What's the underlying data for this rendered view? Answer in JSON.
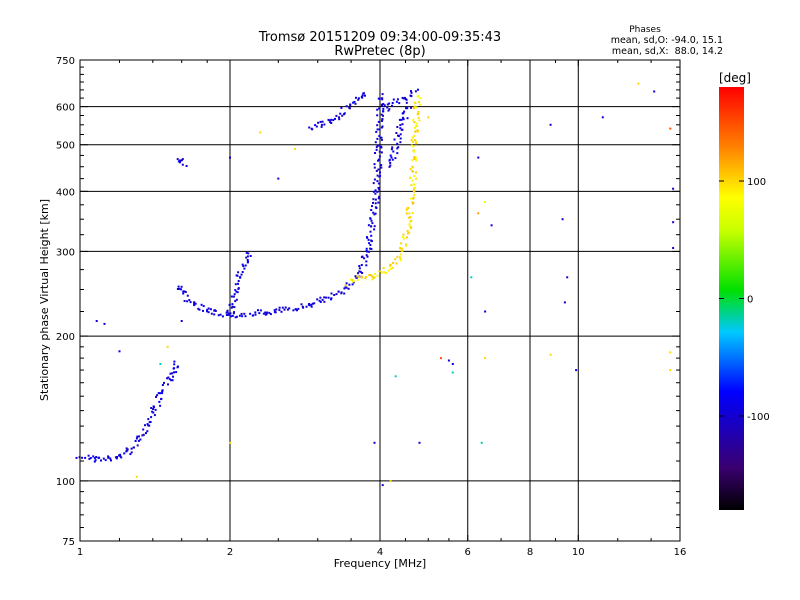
{
  "chart_data": {
    "type": "scatter",
    "title": "Tromsø 20151209 09:34:00-09:35:43",
    "subtitle": "RwPretec (8p)",
    "xlabel": "Frequency [MHz]",
    "ylabel": "Stationary phase Virtual Height [km]",
    "x_scale": "log",
    "y_scale": "log",
    "xlim": [
      1,
      16
    ],
    "ylim": [
      75,
      750
    ],
    "x_ticks": [
      1,
      2,
      4,
      6,
      8,
      10,
      16
    ],
    "x_tick_labels": [
      "1",
      "2",
      "4",
      "6",
      "8",
      "10",
      "16"
    ],
    "y_ticks": [
      75,
      100,
      200,
      300,
      400,
      500,
      600,
      750
    ],
    "y_tick_labels": [
      "75",
      "100",
      "200",
      "300",
      "400",
      "500",
      "600",
      "750"
    ],
    "grid": true,
    "phases_box": {
      "title": "Phases",
      "lines": [
        "mean, sd,O: -94.0, 15.1",
        "mean, sd,X:  88.0, 14.2"
      ]
    },
    "colorbar": {
      "label": "[deg]",
      "range": [
        -180,
        180
      ],
      "ticks": [
        100,
        0,
        -100
      ],
      "tick_labels": [
        "100",
        "0",
        "-100"
      ]
    },
    "traces": [
      {
        "phase": -95,
        "points": [
          [
            1.0,
            113
          ],
          [
            1.03,
            112
          ],
          [
            1.06,
            111
          ],
          [
            1.1,
            111
          ],
          [
            1.14,
            111
          ],
          [
            1.18,
            112
          ],
          [
            1.22,
            113
          ],
          [
            1.26,
            116
          ],
          [
            1.3,
            120
          ],
          [
            1.34,
            127
          ],
          [
            1.38,
            134
          ],
          [
            1.42,
            143
          ],
          [
            1.46,
            152
          ],
          [
            1.5,
            160
          ],
          [
            1.54,
            170
          ],
          [
            1.57,
            178
          ]
        ]
      },
      {
        "phase": -95,
        "points": [
          [
            1.57,
            255
          ],
          [
            1.6,
            245
          ],
          [
            1.65,
            236
          ],
          [
            1.72,
            230
          ],
          [
            1.8,
            226
          ],
          [
            1.9,
            223
          ],
          [
            2.0,
            222
          ],
          [
            2.1,
            222
          ],
          [
            2.25,
            223
          ],
          [
            2.4,
            224
          ],
          [
            2.6,
            227
          ],
          [
            2.8,
            231
          ],
          [
            3.0,
            236
          ],
          [
            3.2,
            242
          ],
          [
            3.4,
            250
          ],
          [
            3.55,
            262
          ],
          [
            3.7,
            280
          ],
          [
            3.8,
            310
          ],
          [
            3.9,
            360
          ],
          [
            3.95,
            420
          ],
          [
            3.98,
            500
          ],
          [
            4.0,
            580
          ],
          [
            4.02,
            640
          ]
        ]
      },
      {
        "phase": -95,
        "points": [
          [
            2.0,
            222
          ],
          [
            2.05,
            245
          ],
          [
            2.1,
            270
          ],
          [
            2.2,
            300
          ]
        ]
      },
      {
        "phase": -95,
        "points": [
          [
            2.9,
            540
          ],
          [
            3.1,
            555
          ],
          [
            3.3,
            575
          ],
          [
            3.5,
            605
          ],
          [
            3.65,
            630
          ],
          [
            3.75,
            645
          ]
        ]
      },
      {
        "phase": -95,
        "points": [
          [
            4.05,
            590
          ],
          [
            4.15,
            600
          ],
          [
            4.3,
            612
          ],
          [
            4.45,
            622
          ],
          [
            4.6,
            635
          ],
          [
            4.75,
            645
          ]
        ]
      },
      {
        "phase": -95,
        "points": [
          [
            4.2,
            450
          ],
          [
            4.3,
            500
          ],
          [
            4.4,
            540
          ],
          [
            4.5,
            580
          ],
          [
            4.6,
            610
          ]
        ]
      },
      {
        "phase": -95,
        "points": [
          [
            1.55,
            470
          ],
          [
            1.6,
            460
          ],
          [
            1.65,
            455
          ]
        ]
      },
      {
        "phase": 95,
        "points": [
          [
            3.45,
            258
          ],
          [
            3.6,
            262
          ],
          [
            3.8,
            265
          ],
          [
            4.0,
            270
          ],
          [
            4.2,
            278
          ],
          [
            4.35,
            290
          ],
          [
            4.45,
            310
          ],
          [
            4.55,
            340
          ],
          [
            4.62,
            380
          ],
          [
            4.66,
            430
          ],
          [
            4.68,
            480
          ],
          [
            4.7,
            520
          ],
          [
            4.72,
            560
          ],
          [
            4.75,
            600
          ],
          [
            4.78,
            640
          ]
        ]
      }
    ],
    "scatter_points": [
      {
        "x": 1.08,
        "y": 215,
        "phase": -95
      },
      {
        "x": 1.12,
        "y": 212,
        "phase": -95
      },
      {
        "x": 1.2,
        "y": 186,
        "phase": -95
      },
      {
        "x": 1.6,
        "y": 215,
        "phase": -95
      },
      {
        "x": 2.0,
        "y": 470,
        "phase": -95
      },
      {
        "x": 2.5,
        "y": 425,
        "phase": -95
      },
      {
        "x": 3.9,
        "y": 120,
        "phase": -95
      },
      {
        "x": 4.05,
        "y": 98,
        "phase": -95
      },
      {
        "x": 4.8,
        "y": 120,
        "phase": -95
      },
      {
        "x": 5.5,
        "y": 178,
        "phase": -95
      },
      {
        "x": 5.6,
        "y": 175,
        "phase": -95
      },
      {
        "x": 6.3,
        "y": 470,
        "phase": -95
      },
      {
        "x": 6.7,
        "y": 340,
        "phase": -95
      },
      {
        "x": 6.5,
        "y": 225,
        "phase": -95
      },
      {
        "x": 8.8,
        "y": 550,
        "phase": -95
      },
      {
        "x": 9.3,
        "y": 350,
        "phase": -95
      },
      {
        "x": 9.5,
        "y": 265,
        "phase": -95
      },
      {
        "x": 9.4,
        "y": 235,
        "phase": -95
      },
      {
        "x": 9.9,
        "y": 170,
        "phase": -95
      },
      {
        "x": 11.2,
        "y": 570,
        "phase": -95
      },
      {
        "x": 14.2,
        "y": 645,
        "phase": -95
      },
      {
        "x": 15.5,
        "y": 405,
        "phase": -95
      },
      {
        "x": 15.5,
        "y": 305,
        "phase": -95
      },
      {
        "x": 15.5,
        "y": 345,
        "phase": -95
      },
      {
        "x": 2.3,
        "y": 530,
        "phase": 100
      },
      {
        "x": 2.7,
        "y": 490,
        "phase": 100
      },
      {
        "x": 1.5,
        "y": 190,
        "phase": 100
      },
      {
        "x": 1.3,
        "y": 102,
        "phase": 100
      },
      {
        "x": 2.0,
        "y": 120,
        "phase": 100
      },
      {
        "x": 4.2,
        "y": 100,
        "phase": 100
      },
      {
        "x": 5.0,
        "y": 570,
        "phase": 100
      },
      {
        "x": 6.5,
        "y": 180,
        "phase": 100
      },
      {
        "x": 8.8,
        "y": 183,
        "phase": 100
      },
      {
        "x": 13.2,
        "y": 670,
        "phase": 100
      },
      {
        "x": 15.3,
        "y": 185,
        "phase": 100
      },
      {
        "x": 15.3,
        "y": 170,
        "phase": 100
      },
      {
        "x": 6.3,
        "y": 360,
        "phase": 120
      },
      {
        "x": 6.5,
        "y": 380,
        "phase": 80
      },
      {
        "x": 5.3,
        "y": 180,
        "phase": 150
      },
      {
        "x": 15.3,
        "y": 540,
        "phase": 150
      },
      {
        "x": 6.4,
        "y": 120,
        "phase": -20
      },
      {
        "x": 6.1,
        "y": 265,
        "phase": -20
      },
      {
        "x": 4.3,
        "y": 165,
        "phase": -20
      },
      {
        "x": 5.6,
        "y": 168,
        "phase": -20
      },
      {
        "x": 1.45,
        "y": 175,
        "phase": -20
      }
    ]
  }
}
